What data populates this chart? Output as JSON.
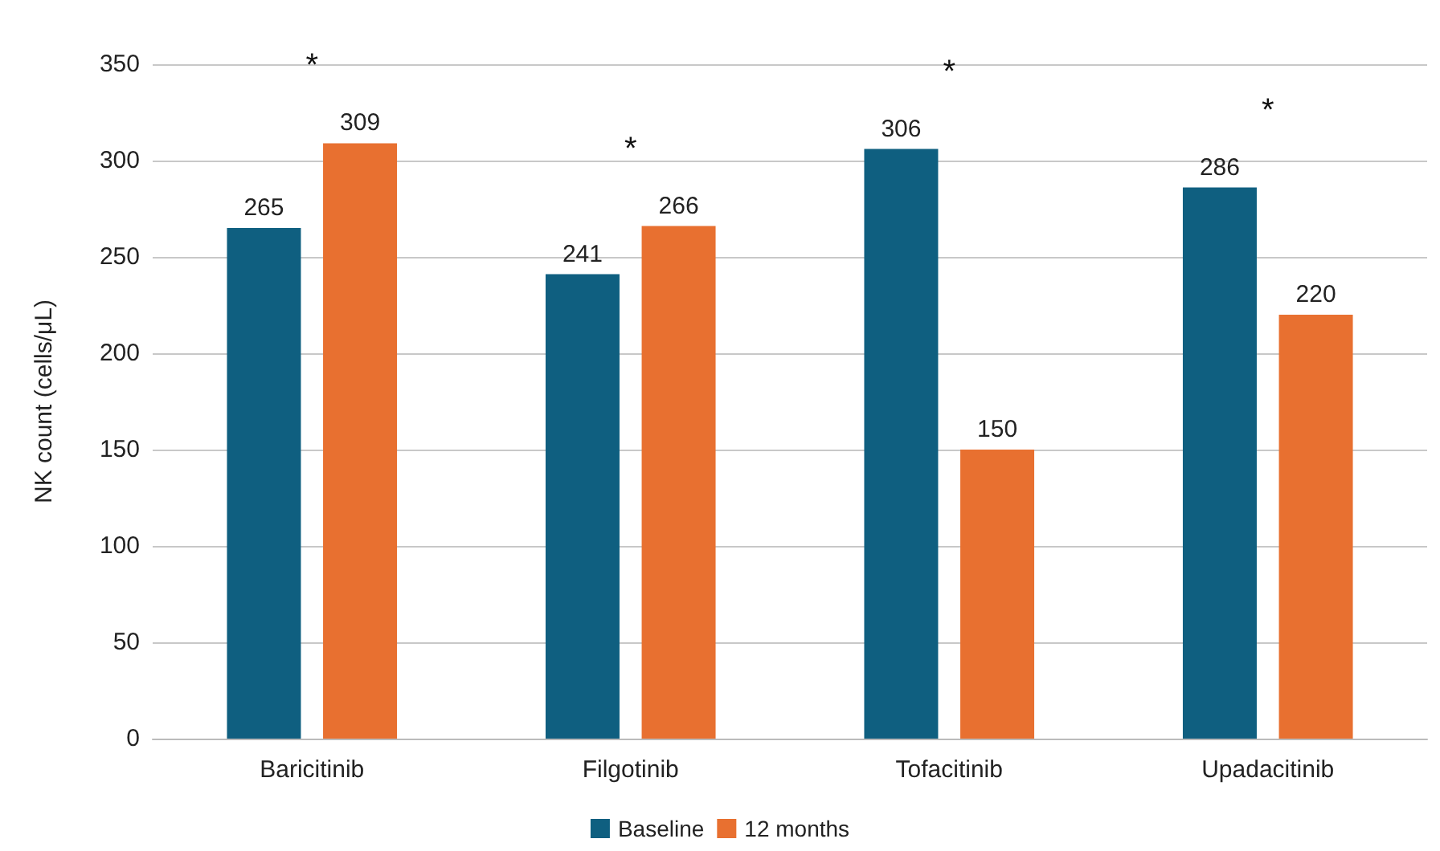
{
  "chart_data": {
    "type": "bar",
    "ylabel": "NK count (cells/μL)",
    "categories": [
      "Baricitinib",
      "Filgotinib",
      "Tofacitinib",
      "Upadacitinib"
    ],
    "series": [
      {
        "name": "Baseline",
        "color": "#0f5f80",
        "values": [
          265,
          241,
          306,
          286
        ]
      },
      {
        "name": "12 months",
        "color": "#e87030",
        "values": [
          309,
          266,
          150,
          220
        ]
      }
    ],
    "ylim": [
      0,
      350
    ],
    "yticks": [
      0,
      50,
      100,
      150,
      200,
      250,
      300,
      350
    ],
    "grid": "y",
    "legend": "bottom",
    "data_labels": true,
    "annotations": [
      "*",
      "*",
      "*",
      "*"
    ]
  }
}
